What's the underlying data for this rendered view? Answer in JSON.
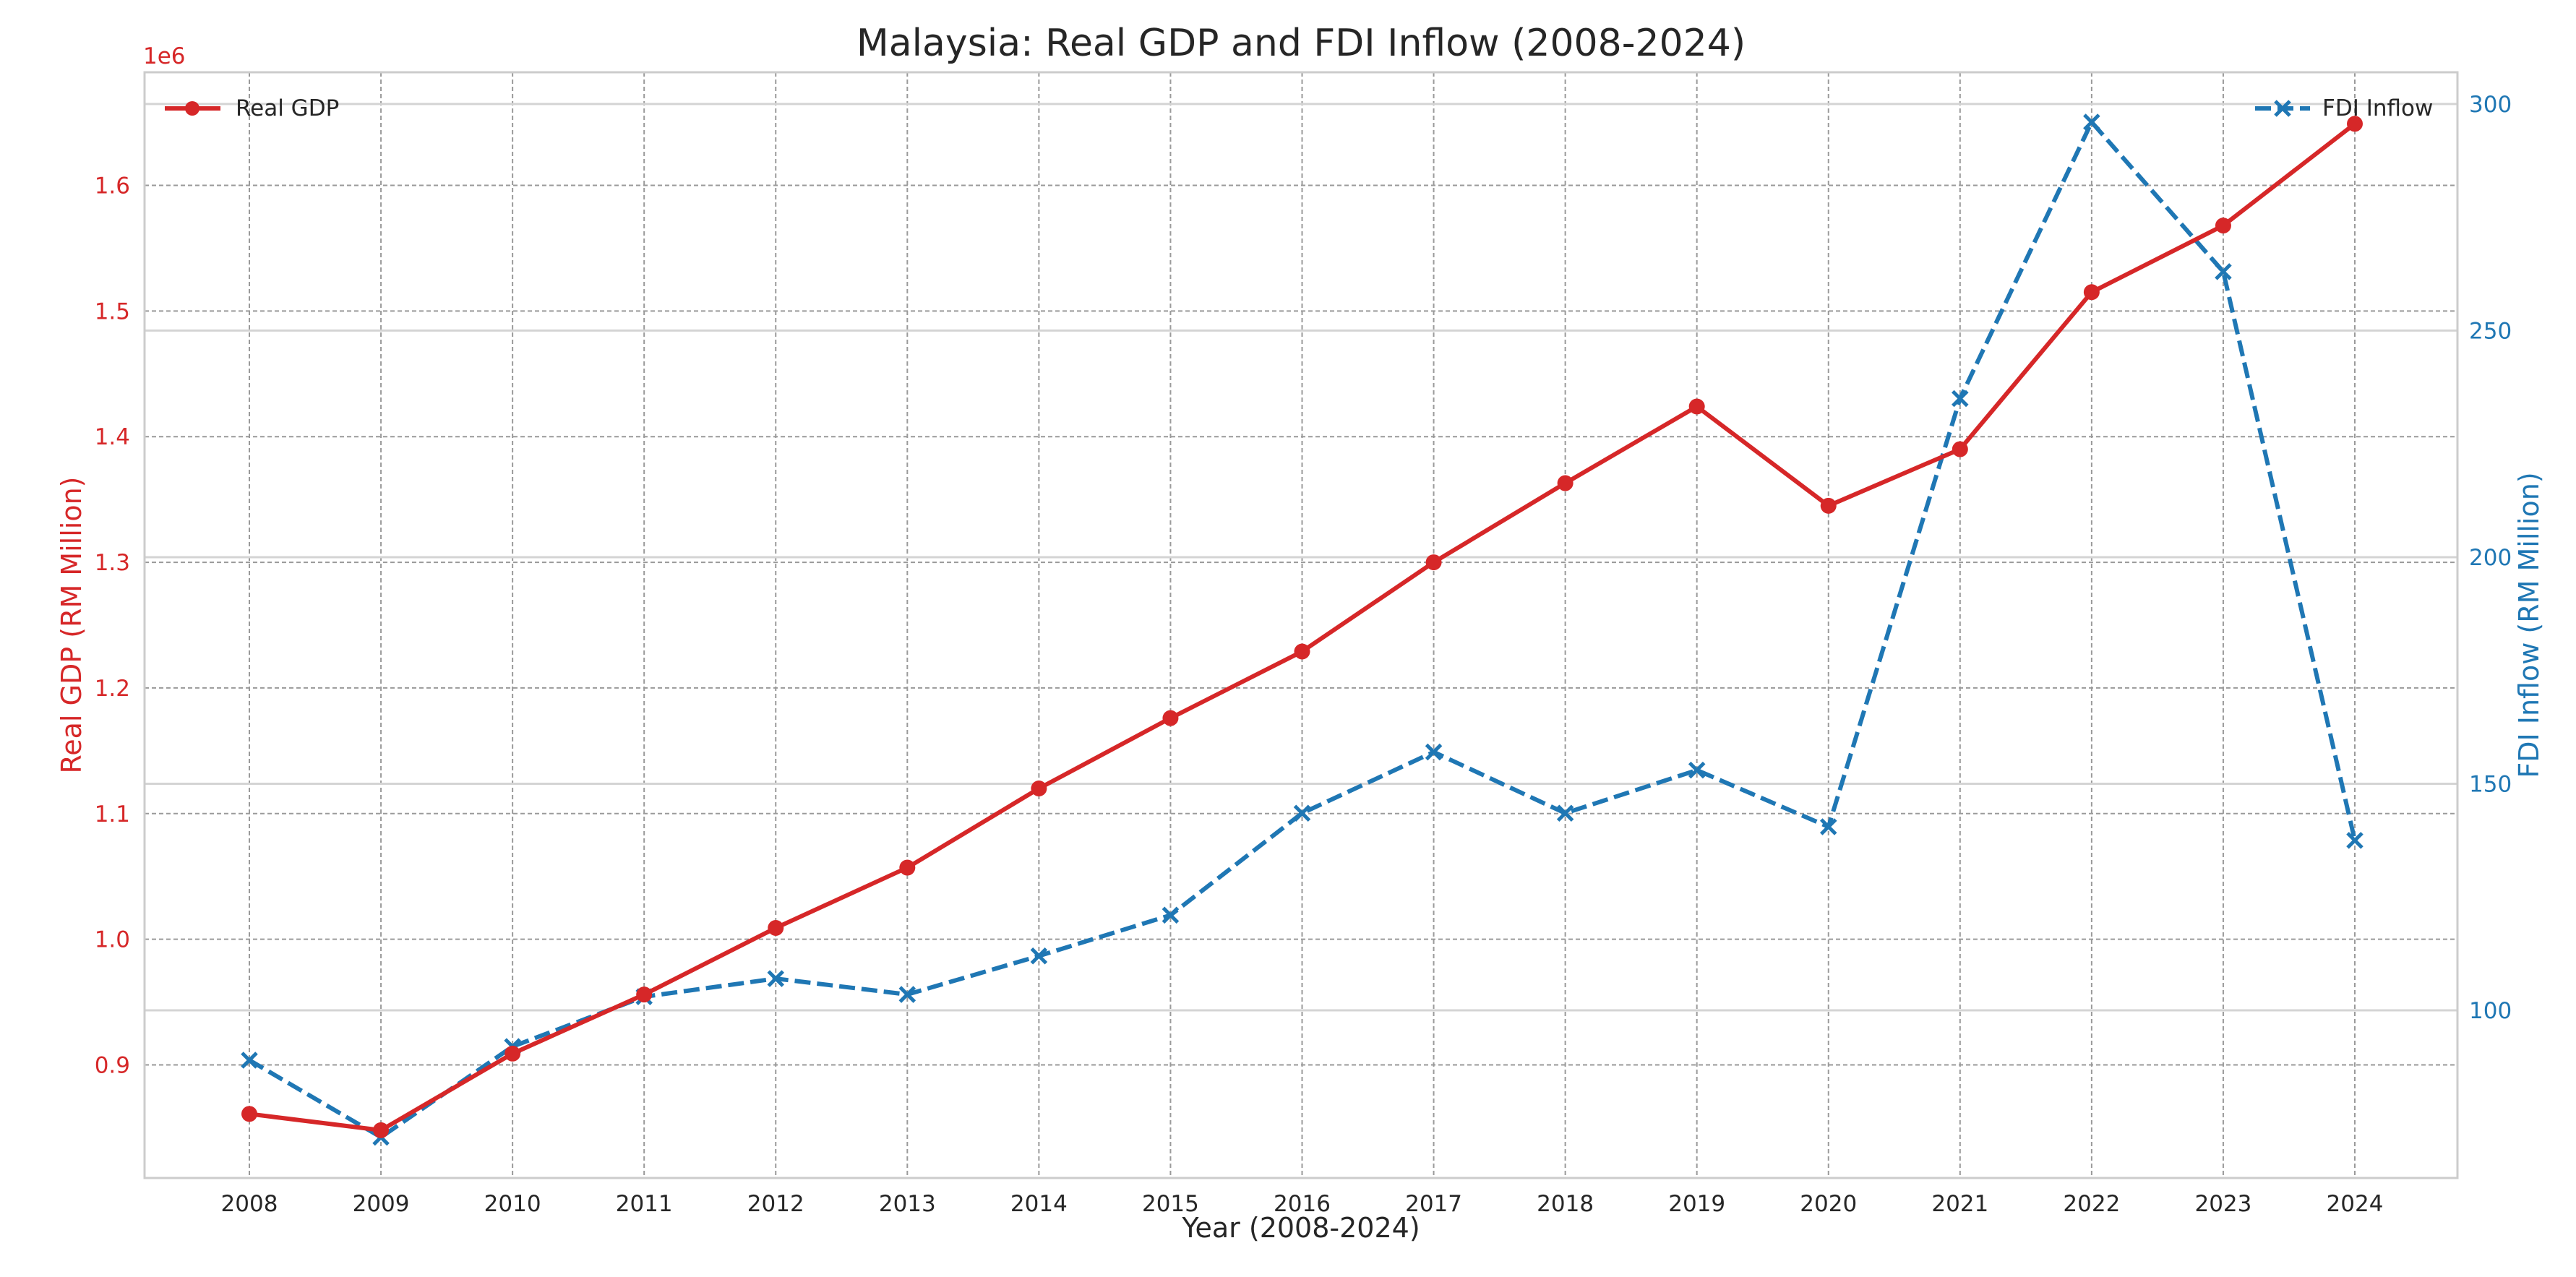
{
  "chart_data": {
    "type": "line",
    "title": "Malaysia: Real GDP and FDI Inflow (2008-2024)",
    "xlabel": "Year (2008-2024)",
    "ylabel_left": "Real GDP (RM Million)",
    "ylabel_right": "FDI Inflow (RM Million)",
    "left_axis_multiplier": "1e6",
    "x": [
      2008,
      2009,
      2010,
      2011,
      2012,
      2013,
      2014,
      2015,
      2016,
      2017,
      2018,
      2019,
      2020,
      2021,
      2022,
      2023,
      2024
    ],
    "ylim_left": [
      810000,
      1690000
    ],
    "yticks_left": [
      0.9,
      1.0,
      1.1,
      1.2,
      1.3,
      1.4,
      1.5,
      1.6
    ],
    "ylim_right": [
      63,
      307
    ],
    "yticks_right": [
      100,
      150,
      200,
      250,
      300
    ],
    "grid": true,
    "series": [
      {
        "name": "Real GDP",
        "axis": "left",
        "color": "#d62728",
        "marker": "circle",
        "linestyle": "solid",
        "legend_position": "top-left",
        "values": [
          861000,
          848000,
          909000,
          956000,
          1009000,
          1057000,
          1120000,
          1176000,
          1229000,
          1300000,
          1363000,
          1424000,
          1345000,
          1390000,
          1515000,
          1568000,
          1649000
        ]
      },
      {
        "name": "FDI Inflow",
        "axis": "right",
        "color": "#1f77b4",
        "marker": "x",
        "linestyle": "dashed",
        "legend_position": "top-right",
        "values": [
          89,
          72,
          92,
          103,
          107,
          103.5,
          112,
          121,
          143.5,
          157,
          143.5,
          153,
          140.5,
          235,
          296,
          263,
          137.5
        ]
      }
    ]
  }
}
